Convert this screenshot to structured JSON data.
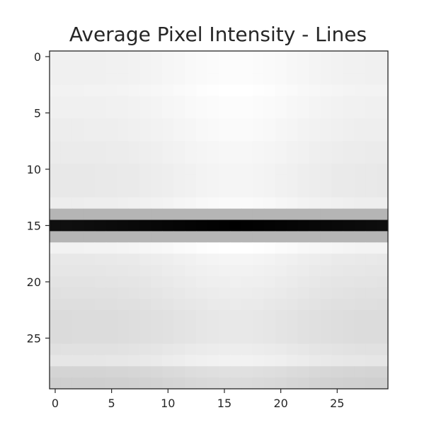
{
  "chart_data": {
    "type": "heatmap",
    "title": "Average Pixel Intensity - Lines",
    "xlabel": "",
    "ylabel": "",
    "colormap": "gray",
    "value_range": [
      0,
      1
    ],
    "grid": false,
    "n_rows": 30,
    "n_cols": 30,
    "x_ticks": [
      0,
      5,
      10,
      15,
      20,
      25
    ],
    "y_ticks": [
      0,
      5,
      10,
      15,
      20,
      25
    ],
    "x_tick_labels": [
      "0",
      "5",
      "10",
      "15",
      "20",
      "25"
    ],
    "y_tick_labels": [
      "0",
      "5",
      "10",
      "15",
      "20",
      "25"
    ],
    "row_base_intensity": [
      0.94,
      0.94,
      0.94,
      0.95,
      0.94,
      0.94,
      0.93,
      0.93,
      0.92,
      0.92,
      0.91,
      0.91,
      0.91,
      0.93,
      0.71,
      0.02,
      0.71,
      0.95,
      0.91,
      0.9,
      0.89,
      0.88,
      0.87,
      0.86,
      0.86,
      0.86,
      0.88,
      0.9,
      0.83,
      0.81
    ],
    "center_brightening": {
      "center_col": 16,
      "width_cols": 7,
      "amount": 0.05
    },
    "black_row_profile": {
      "row": 15,
      "edge_value": 0.06,
      "center_value": 0.0
    }
  }
}
